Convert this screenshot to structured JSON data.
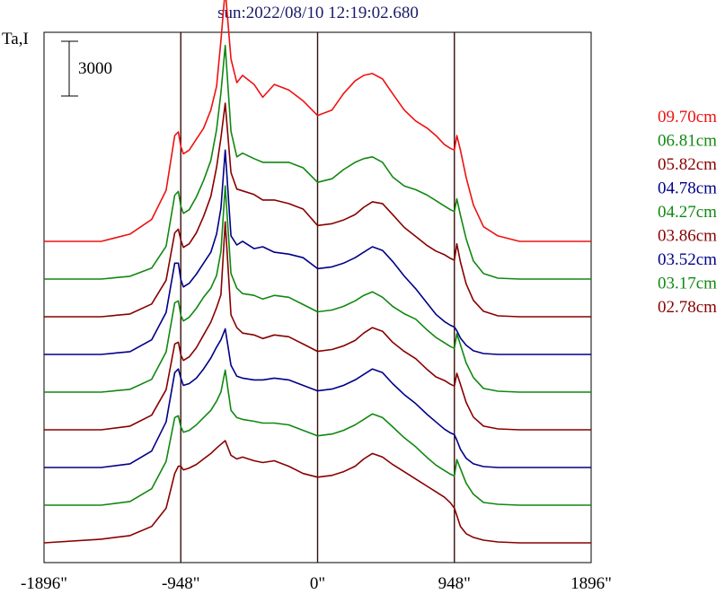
{
  "chart_data": {
    "type": "line",
    "title": "sun:2022/08/10 12:19:02.680",
    "ylabel": "Ta,I",
    "scale_bar_label": "3000",
    "scale_bar_value": 3000,
    "x_ticks": [
      {
        "value": -1896,
        "label": "-1896\""
      },
      {
        "value": -948,
        "label": "-948\""
      },
      {
        "value": 0,
        "label": "0\""
      },
      {
        "value": 948,
        "label": "948\""
      },
      {
        "value": 1896,
        "label": "1896\""
      }
    ],
    "xlim": [
      -1896,
      1896
    ],
    "vertical_lines": [
      -948,
      0,
      948
    ],
    "series_offset": 3000,
    "series": [
      {
        "name": "09.70cm",
        "color": "#ee1111",
        "baseline": 8
      },
      {
        "name": "06.81cm",
        "color": "#118811",
        "baseline": 7
      },
      {
        "name": "05.82cm",
        "color": "#880000",
        "baseline": 6
      },
      {
        "name": "04.78cm",
        "color": "#000088",
        "baseline": 5
      },
      {
        "name": "04.27cm",
        "color": "#118811",
        "baseline": 4
      },
      {
        "name": "03.86cm",
        "color": "#880000",
        "baseline": 3
      },
      {
        "name": "03.52cm",
        "color": "#000088",
        "baseline": 2
      },
      {
        "name": "03.17cm",
        "color": "#118811",
        "baseline": 1
      },
      {
        "name": "02.78cm",
        "color": "#880000",
        "baseline": 0
      }
    ],
    "profile": {
      "x": [
        -1896,
        -1500,
        -1300,
        -1150,
        -1050,
        -990,
        -965,
        -948,
        -930,
        -890,
        -840,
        -790,
        -740,
        -700,
        -670,
        -640,
        -600,
        -560,
        -520,
        -440,
        -380,
        -300,
        -200,
        -100,
        0,
        100,
        180,
        260,
        320,
        380,
        450,
        520,
        600,
        680,
        760,
        820,
        880,
        920,
        948,
        965,
        990,
        1030,
        1080,
        1150,
        1250,
        1400,
        1600,
        1896
      ],
      "series_values": [
        [
          0,
          0,
          400,
          1200,
          2800,
          5800,
          6000,
          5200,
          4800,
          5000,
          5600,
          6200,
          7200,
          8500,
          11000,
          13800,
          10000,
          8700,
          9100,
          8600,
          7900,
          8600,
          8300,
          7700,
          6900,
          7200,
          8100,
          8800,
          9100,
          9200,
          8900,
          8100,
          7200,
          6600,
          6200,
          5800,
          5300,
          5100,
          5000,
          5800,
          5000,
          3500,
          2000,
          800,
          300,
          0,
          0,
          0
        ],
        [
          0,
          0,
          150,
          600,
          1800,
          4600,
          4800,
          4000,
          3600,
          3800,
          4500,
          5400,
          6500,
          8200,
          10200,
          12800,
          8100,
          6700,
          6900,
          6600,
          6400,
          6400,
          6400,
          6100,
          5300,
          5500,
          6000,
          6400,
          6600,
          6700,
          6400,
          5600,
          5100,
          4900,
          4600,
          4300,
          4000,
          3800,
          3700,
          4400,
          3500,
          2200,
          1000,
          300,
          50,
          0,
          0,
          0
        ],
        [
          0,
          0,
          150,
          700,
          2000,
          4600,
          4800,
          4200,
          3800,
          4000,
          4600,
          5500,
          6600,
          8200,
          9800,
          11700,
          7900,
          7000,
          6900,
          6700,
          6400,
          6400,
          6200,
          5900,
          5000,
          5100,
          5300,
          5600,
          6000,
          6300,
          6200,
          5600,
          4900,
          4400,
          3900,
          3600,
          3400,
          3200,
          3100,
          4000,
          3000,
          1800,
          900,
          300,
          50,
          0,
          0,
          0
        ],
        [
          0,
          0,
          150,
          800,
          2300,
          5000,
          5000,
          4100,
          3700,
          3900,
          4400,
          5000,
          5600,
          6600,
          8000,
          11200,
          6500,
          6000,
          6200,
          5800,
          5900,
          5600,
          5500,
          5300,
          4700,
          4800,
          5000,
          5300,
          5600,
          5900,
          5700,
          5100,
          4300,
          3600,
          2800,
          2200,
          1800,
          1600,
          1500,
          1300,
          900,
          500,
          200,
          50,
          0,
          0,
          0,
          0
        ],
        [
          0,
          0,
          150,
          700,
          2200,
          4900,
          5000,
          4200,
          3900,
          4100,
          4600,
          5200,
          5700,
          6400,
          7700,
          11300,
          6500,
          5700,
          5400,
          5300,
          5100,
          5300,
          5200,
          4800,
          4400,
          4500,
          4700,
          5000,
          5300,
          5500,
          5200,
          4700,
          4300,
          4000,
          3400,
          3000,
          2700,
          2500,
          2400,
          3200,
          2600,
          1600,
          800,
          200,
          50,
          0,
          0,
          0
        ],
        [
          0,
          0,
          200,
          800,
          2200,
          4700,
          4800,
          4100,
          3800,
          4000,
          4500,
          5200,
          5900,
          6700,
          7400,
          11400,
          6300,
          5600,
          5300,
          5200,
          5000,
          5200,
          5100,
          4700,
          4300,
          4400,
          4600,
          4900,
          5300,
          5600,
          5400,
          4800,
          4300,
          3900,
          3300,
          2900,
          2700,
          2500,
          2400,
          3100,
          2500,
          1500,
          700,
          200,
          50,
          0,
          0,
          0
        ],
        [
          0,
          0,
          200,
          900,
          2500,
          5200,
          5400,
          4900,
          4500,
          4600,
          4900,
          5400,
          6000,
          6600,
          7000,
          7600,
          5600,
          5000,
          4900,
          4800,
          4800,
          4900,
          4800,
          4500,
          4200,
          4300,
          4500,
          4800,
          5100,
          5400,
          5200,
          4600,
          4000,
          3500,
          2900,
          2500,
          2100,
          1900,
          1800,
          1500,
          1000,
          500,
          200,
          50,
          0,
          0,
          0,
          0
        ],
        [
          0,
          0,
          200,
          900,
          2400,
          4800,
          4900,
          4300,
          4000,
          4100,
          4400,
          4800,
          5200,
          5700,
          6200,
          7400,
          5200,
          4800,
          4700,
          4600,
          4500,
          4500,
          4400,
          4100,
          3800,
          3900,
          4100,
          4400,
          4700,
          5000,
          4800,
          4300,
          3700,
          3200,
          2600,
          2200,
          1900,
          1700,
          1600,
          2500,
          2000,
          1200,
          600,
          150,
          50,
          0,
          0,
          0
        ],
        [
          0,
          200,
          400,
          900,
          1900,
          3800,
          4200,
          4200,
          4000,
          4100,
          4300,
          4600,
          4900,
          5200,
          5400,
          5600,
          4800,
          4600,
          4700,
          4500,
          4400,
          4500,
          4200,
          3800,
          3600,
          3700,
          3900,
          4200,
          4600,
          4900,
          4700,
          4300,
          3900,
          3500,
          3100,
          2800,
          2500,
          2200,
          1900,
          1500,
          900,
          500,
          300,
          150,
          50,
          0,
          0,
          0
        ]
      ]
    }
  }
}
